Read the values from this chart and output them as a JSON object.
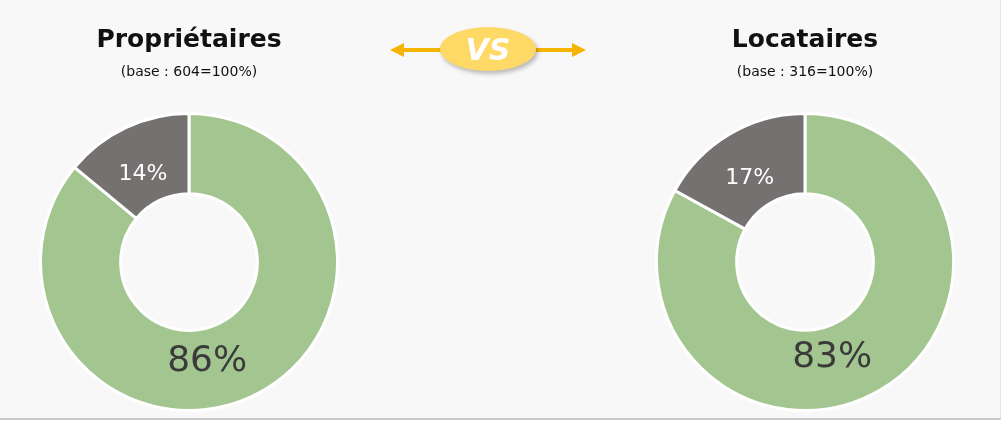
{
  "chart_data": [
    {
      "type": "donut",
      "title": "Propriétaires",
      "subtitle": "(base : 604=100%)",
      "categories": [
        null,
        null
      ],
      "values": [
        86,
        14
      ],
      "value_labels": [
        "86%",
        "14%"
      ],
      "colors": [
        "#a3c590",
        "#757170"
      ],
      "legend": false
    },
    {
      "type": "other",
      "title": "VS"
    },
    {
      "type": "donut",
      "title": "Locataires",
      "subtitle": "(base : 316=100%)",
      "categories": [
        null,
        null
      ],
      "values": [
        83,
        17
      ],
      "value_labels": [
        "83%",
        "17%"
      ],
      "colors": [
        "#a3c590",
        "#757170"
      ],
      "legend": false
    }
  ]
}
